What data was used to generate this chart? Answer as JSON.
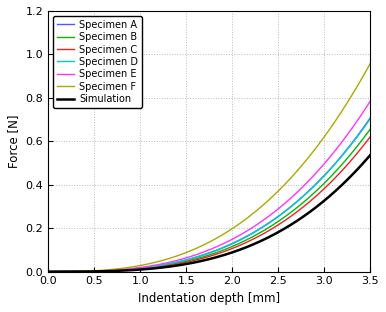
{
  "title": "",
  "xlabel": "Indentation depth [mm]",
  "ylabel": "Force [N]",
  "xlim": [
    0,
    3.5
  ],
  "ylim": [
    0,
    1.2
  ],
  "xticks": [
    0,
    0.5,
    1,
    1.5,
    2,
    2.5,
    3,
    3.5
  ],
  "yticks": [
    0,
    0.2,
    0.4,
    0.6,
    0.8,
    1.0,
    1.2
  ],
  "specimens": [
    {
      "label": "Specimen A",
      "color": "#5555ff",
      "k": 0.0155,
      "n": 3.05
    },
    {
      "label": "Specimen B",
      "color": "#00bb00",
      "k": 0.0135,
      "n": 3.1
    },
    {
      "label": "Specimen C",
      "color": "#ee2222",
      "k": 0.012,
      "n": 3.15
    },
    {
      "label": "Specimen D",
      "color": "#00cccc",
      "k": 0.016,
      "n": 3.02
    },
    {
      "label": "Specimen E",
      "color": "#ff33ff",
      "k": 0.019,
      "n": 2.97
    },
    {
      "label": "Specimen F",
      "color": "#aaaa00",
      "k": 0.028,
      "n": 2.82
    },
    {
      "label": "Simulation",
      "color": "#000000",
      "k": 0.0095,
      "n": 3.22
    }
  ],
  "background_color": "#ffffff",
  "grid_color": "#bbbbbb",
  "legend_fontsize": 7.0,
  "axis_fontsize": 8.5,
  "tick_fontsize": 8.0,
  "linewidth_specimen": 1.0,
  "linewidth_simulation": 1.8
}
